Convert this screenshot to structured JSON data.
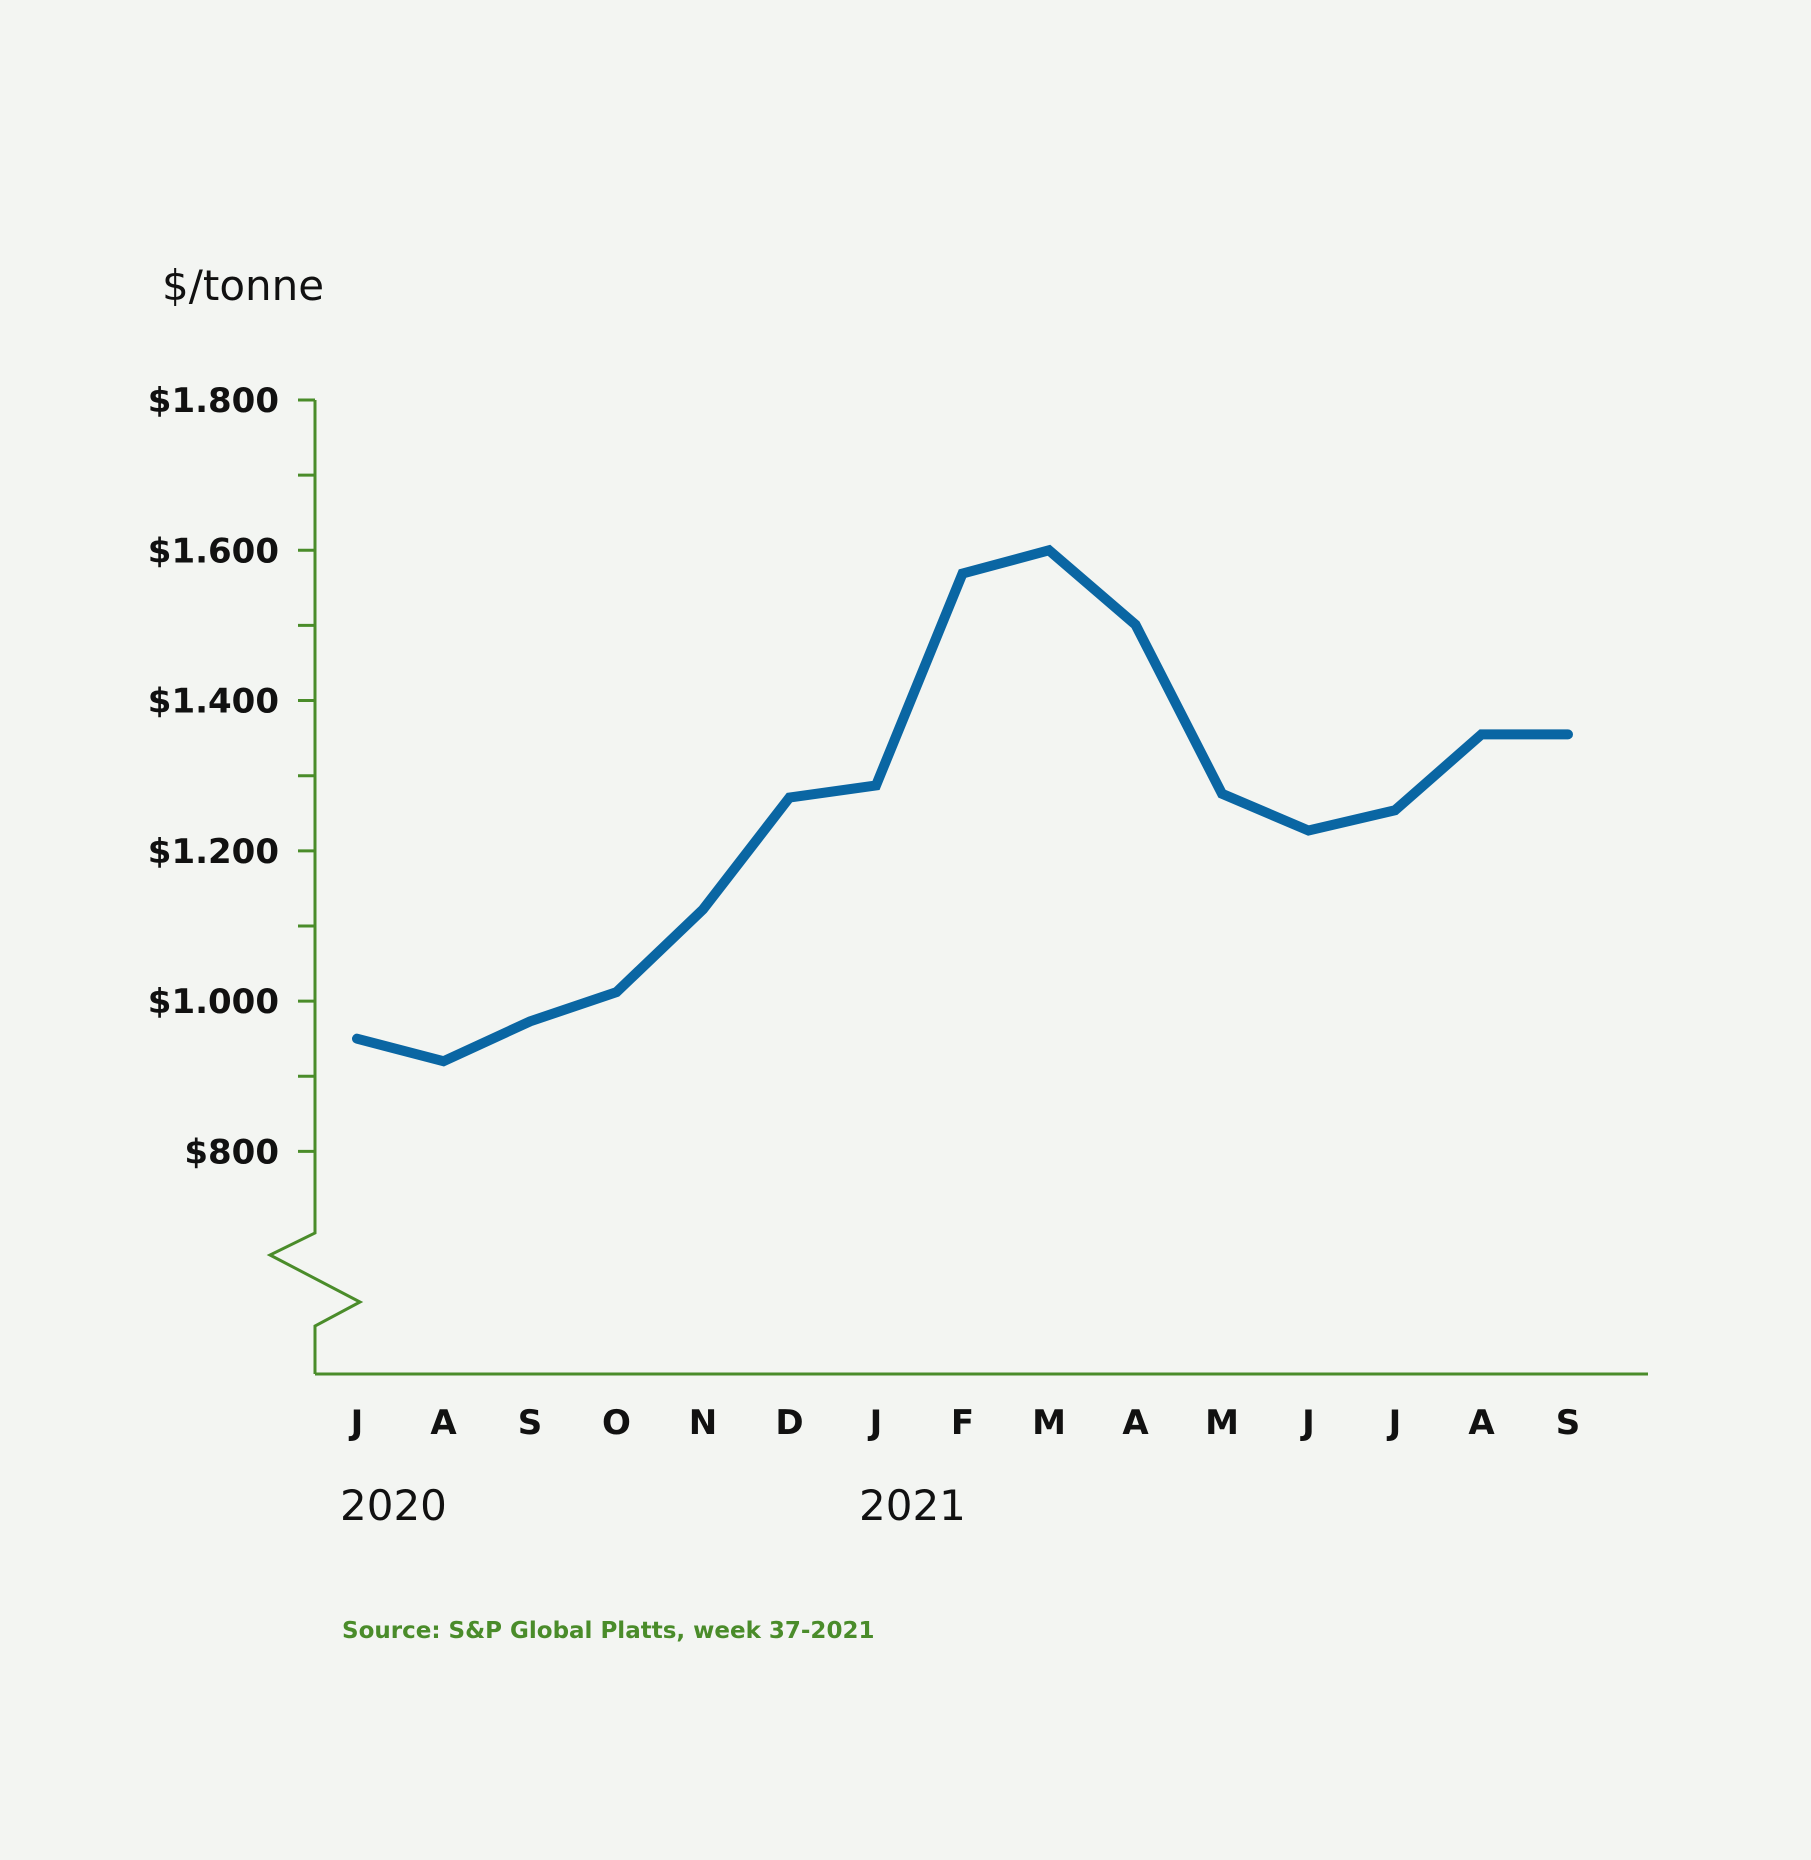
{
  "chart_data": {
    "type": "line",
    "ylabel": "$/tonne",
    "ylim": [
      800,
      1800
    ],
    "y_ticks": [
      {
        "value": 800,
        "label": "$800"
      },
      {
        "value": 1000,
        "label": "$1.000"
      },
      {
        "value": 1200,
        "label": "$1.200"
      },
      {
        "value": 1400,
        "label": "$1.400"
      },
      {
        "value": 1600,
        "label": "$1.600"
      },
      {
        "value": 1800,
        "label": "$1.800"
      }
    ],
    "categories": [
      "J",
      "A",
      "S",
      "O",
      "N",
      "D",
      "J",
      "F",
      "M",
      "A",
      "M",
      "J",
      "J",
      "A",
      "S"
    ],
    "years": [
      {
        "label": "2020",
        "category_index": 0
      },
      {
        "label": "2021",
        "category_index": 6
      }
    ],
    "series": [
      {
        "values": [
          950,
          920,
          973,
          1012,
          1122,
          1271,
          1287,
          1569,
          1600,
          1501,
          1276,
          1227,
          1254,
          1355,
          1355
        ]
      }
    ],
    "y_axis_break": true,
    "grid": false,
    "source": "Source: S&P Global Platts, week 37-2021",
    "colors": {
      "line": "#0a66a3",
      "axis": "#4a8c2a",
      "text": "#111111",
      "background": "#f3f5f2"
    }
  }
}
